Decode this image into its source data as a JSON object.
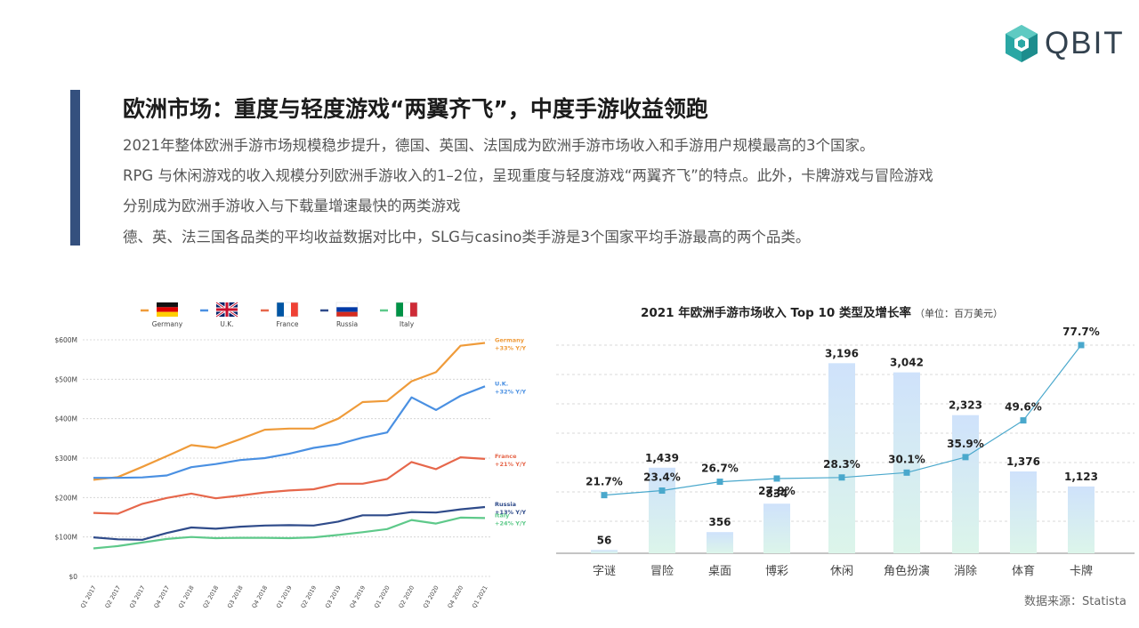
{
  "brand": {
    "logo_text": "QBIT"
  },
  "header": {
    "title": "欧洲市场：重度与轻度游戏“两翼齐飞”，中度手游收益领跑",
    "lines": [
      "2021年整体欧洲手游市场规模稳步提升，德国、英国、法国成为欧洲手游市场收入和手游用户规模最高的3个国家。",
      "RPG 与休闲游戏的收入规模分列欧洲手游收入的1–2位，呈现重度与轻度游戏“两翼齐飞”的特点。此外，卡牌游戏与冒险游戏",
      "分别成为欧洲手游收入与下载量增速最快的两类游戏",
      "德、英、法三国各品类的平均收益数据对比中，SLG与casino类手游是3个国家平均手游最高的两个品类。"
    ]
  },
  "colors": {
    "germany": "#ef9b3a",
    "uk": "#4a90e2",
    "france": "#e6674b",
    "russia": "#2f4b8a",
    "italy": "#5ec98a",
    "bar_top": "#cfe2fb",
    "bar_bottom": "#dcf5ea",
    "growth_line": "#4aa8cc"
  },
  "chart_data": [
    {
      "type": "line",
      "legend": [
        "Germany",
        "U.K.",
        "France",
        "Russia",
        "Italy"
      ],
      "x": [
        "Q1 2017",
        "Q2 2017",
        "Q3 2017",
        "Q4 2017",
        "Q1 2018",
        "Q2 2018",
        "Q3 2018",
        "Q4 2018",
        "Q1 2019",
        "Q2 2019",
        "Q3 2019",
        "Q4 2019",
        "Q1 2020",
        "Q2 2020",
        "Q3 2020",
        "Q4 2020",
        "Q1 2021"
      ],
      "y_ticks": [
        "$0",
        "$100M",
        "$200M",
        "$300M",
        "$400M",
        "$500M",
        "$600M"
      ],
      "ylim": [
        0,
        600
      ],
      "series": [
        {
          "name": "Germany",
          "values": [
            245,
            252,
            278,
            305,
            333,
            326,
            348,
            372,
            375,
            375,
            400,
            442,
            445,
            495,
            518,
            585,
            592
          ],
          "end_label": "Germany",
          "growth": "+33% Y/Y"
        },
        {
          "name": "U.K.",
          "values": [
            250,
            250,
            251,
            256,
            277,
            285,
            295,
            300,
            311,
            326,
            335,
            352,
            365,
            454,
            422,
            458,
            482
          ],
          "end_label": "U.K.",
          "growth": "+32% Y/Y"
        },
        {
          "name": "France",
          "values": [
            161,
            159,
            184,
            199,
            210,
            198,
            205,
            213,
            218,
            221,
            235,
            235,
            247,
            290,
            272,
            302,
            298
          ],
          "end_label": "France",
          "growth": "+21% Y/Y"
        },
        {
          "name": "Russia",
          "values": [
            99,
            94,
            93,
            110,
            124,
            121,
            126,
            129,
            130,
            129,
            139,
            155,
            155,
            163,
            162,
            170,
            176
          ],
          "end_label": "Russia",
          "growth": "+13% Y/Y"
        },
        {
          "name": "Italy",
          "values": [
            71,
            77,
            86,
            95,
            100,
            97,
            98,
            98,
            97,
            99,
            105,
            112,
            120,
            143,
            134,
            149,
            148
          ],
          "end_label": "Italy",
          "growth": "+24% Y/Y"
        }
      ]
    },
    {
      "type": "bar",
      "title": "2021 年欧洲手游市场收入 Top 10 类型及增长率",
      "unit": "（单位：百万美元）",
      "categories": [
        "字谜",
        "冒险",
        "桌面",
        "博彩",
        "休闲",
        "角色扮演",
        "消除",
        "体育",
        "卡牌"
      ],
      "values": [
        56,
        1439,
        356,
        834,
        3196,
        3042,
        2323,
        1376,
        1123
      ],
      "value_labels": [
        "56",
        "1,439",
        "356",
        "834",
        "3,196",
        "3,042",
        "2,323",
        "1,376",
        "1,123"
      ],
      "growth_rates": [
        21.7,
        23.4,
        26.7,
        27.9,
        28.3,
        30.1,
        35.9,
        49.6,
        77.7
      ],
      "growth_labels": [
        "21.7%",
        "23.4%",
        "26.7%",
        "27.9%",
        "28.3%",
        "30.1%",
        "35.9%",
        "49.6%",
        "77.7%"
      ],
      "ylim": [
        0,
        3500
      ],
      "growth_lim": [
        0,
        82
      ]
    }
  ],
  "footer": {
    "source": "数据来源：Statista"
  }
}
